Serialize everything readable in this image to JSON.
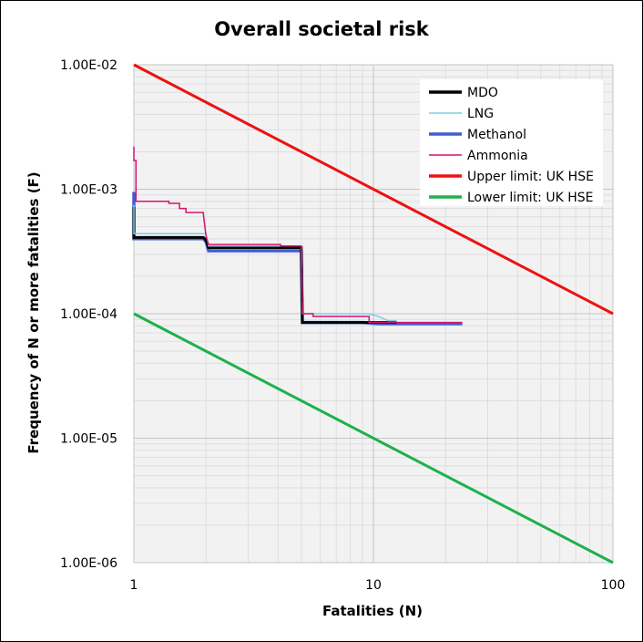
{
  "chart_data": {
    "type": "line",
    "title": "Overall societal risk",
    "xlabel": "Fatalities (N)",
    "ylabel": "Frequency of N or more fatalities (F)",
    "x_scale": "log",
    "y_scale": "log",
    "xlim": [
      1,
      100
    ],
    "ylim": [
      1e-06,
      0.01
    ],
    "x_ticks": [
      {
        "value": 1,
        "label": "1"
      },
      {
        "value": 10,
        "label": "10"
      },
      {
        "value": 100,
        "label": "100"
      }
    ],
    "y_ticks": [
      {
        "value": 0.01,
        "label": "1.00E-02"
      },
      {
        "value": 0.001,
        "label": "1.00E-03"
      },
      {
        "value": 0.0001,
        "label": "1.00E-04"
      },
      {
        "value": 1e-05,
        "label": "1.00E-05"
      },
      {
        "value": 1e-06,
        "label": "1.00E-06"
      }
    ],
    "grid": true,
    "legend_position": "top-right",
    "series": [
      {
        "name": "MDO",
        "color": "#000000",
        "x": [
          1,
          1,
          1.95,
          2,
          2.05,
          5,
          5.05,
          8.6,
          8.7,
          12.5
        ],
        "y": [
          0.00072,
          0.00041,
          0.00041,
          0.00039,
          0.00034,
          0.00034,
          8.5e-05,
          8.5e-05,
          8.5e-05,
          8.5e-05
        ]
      },
      {
        "name": "LNG",
        "color": "#7ecfe3",
        "x": [
          1,
          1,
          2,
          2.05,
          5,
          5.05,
          9.5,
          10.5,
          11.5,
          12.5
        ],
        "y": [
          0.00075,
          0.00044,
          0.00044,
          0.00035,
          0.00035,
          0.0001,
          0.0001,
          9.5e-05,
          8.8e-05,
          8.8e-05
        ]
      },
      {
        "name": "Methanol",
        "color": "#3d5fcf",
        "x": [
          1,
          1,
          1.95,
          2,
          2.05,
          5,
          5.05,
          9,
          10.5,
          23.5
        ],
        "y": [
          0.00095,
          0.0004,
          0.0004,
          0.00038,
          0.00032,
          0.00032,
          8.5e-05,
          8.5e-05,
          8.3e-05,
          8.3e-05
        ]
      },
      {
        "name": "Ammonia",
        "color": "#d4136f",
        "x": [
          1,
          1,
          1.02,
          1.02,
          1.4,
          1.4,
          1.55,
          1.55,
          1.65,
          1.65,
          1.95,
          1.95,
          2,
          2.05,
          4.1,
          4.1,
          5,
          5.05,
          5.6,
          5.6,
          9.6,
          9.6,
          23.5
        ],
        "y": [
          0.0022,
          0.0017,
          0.0017,
          0.0008,
          0.0008,
          0.00077,
          0.00077,
          0.0007,
          0.0007,
          0.00065,
          0.00065,
          0.00063,
          0.00042,
          0.00036,
          0.00036,
          0.00035,
          0.00035,
          0.0001,
          0.0001,
          9.5e-05,
          9.5e-05,
          8.5e-05,
          8.5e-05
        ]
      },
      {
        "name": "Upper limit: UK HSE",
        "color": "#ee1111",
        "x": [
          1,
          100
        ],
        "y": [
          0.01,
          0.0001
        ]
      },
      {
        "name": "Lower limit: UK HSE",
        "color": "#1fb04a",
        "x": [
          1,
          100
        ],
        "y": [
          0.0001,
          1e-06
        ]
      }
    ]
  }
}
